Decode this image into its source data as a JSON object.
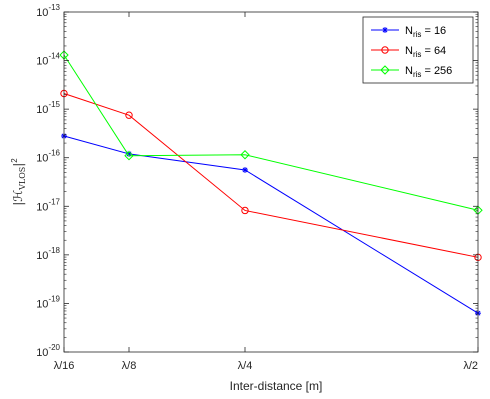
{
  "chart_data": {
    "type": "line",
    "title": "",
    "xlabel": "Inter-distance [m]",
    "ylabel": "|H_VLOS|^2",
    "ylabel_parts": {
      "base": "|ℋ",
      "sub": "VLOS",
      "suffix": "|",
      "sup": "2"
    },
    "y_scale": "log",
    "ylim": [
      1e-20,
      1e-13
    ],
    "grid": false,
    "legend_position": "top-right",
    "x_ticks": [
      {
        "value": 0.0625,
        "label": "λ/16"
      },
      {
        "value": 0.125,
        "label": "λ/8"
      },
      {
        "value": 0.25,
        "label": "λ/4"
      },
      {
        "value": 0.5,
        "label": "λ/2"
      }
    ],
    "y_ticks": [
      {
        "value": 1e-20,
        "base": "10",
        "exp": "-20"
      },
      {
        "value": 1e-19,
        "base": "10",
        "exp": "-19"
      },
      {
        "value": 1e-18,
        "base": "10",
        "exp": "-18"
      },
      {
        "value": 1e-17,
        "base": "10",
        "exp": "-17"
      },
      {
        "value": 1e-16,
        "base": "10",
        "exp": "-16"
      },
      {
        "value": 1e-15,
        "base": "10",
        "exp": "-15"
      },
      {
        "value": 1e-14,
        "base": "10",
        "exp": "-14"
      },
      {
        "value": 1e-13,
        "base": "10",
        "exp": "-13"
      }
    ],
    "x": [
      0.0625,
      0.125,
      0.25,
      0.5
    ],
    "series": [
      {
        "name": "N_ris = 16",
        "legend": {
          "pre": "N",
          "sub": "ris",
          "post": " = 16"
        },
        "color": "#0000ff",
        "marker": "asterisk",
        "values": [
          2.8e-16,
          1.2e-16,
          5.6e-17,
          6.3e-20
        ]
      },
      {
        "name": "N_ris = 64",
        "legend": {
          "pre": "N",
          "sub": "ris",
          "post": " = 64"
        },
        "color": "#ff0000",
        "marker": "circle",
        "values": [
          2.1e-15,
          7.5e-16,
          8.2e-18,
          8.9e-19
        ]
      },
      {
        "name": "N_ris = 256",
        "legend": {
          "pre": "N",
          "sub": "ris",
          "post": " = 256"
        },
        "color": "#00ff00",
        "marker": "diamond",
        "values": [
          1.3e-14,
          1.1e-16,
          1.15e-16,
          8.3e-18
        ]
      }
    ]
  }
}
